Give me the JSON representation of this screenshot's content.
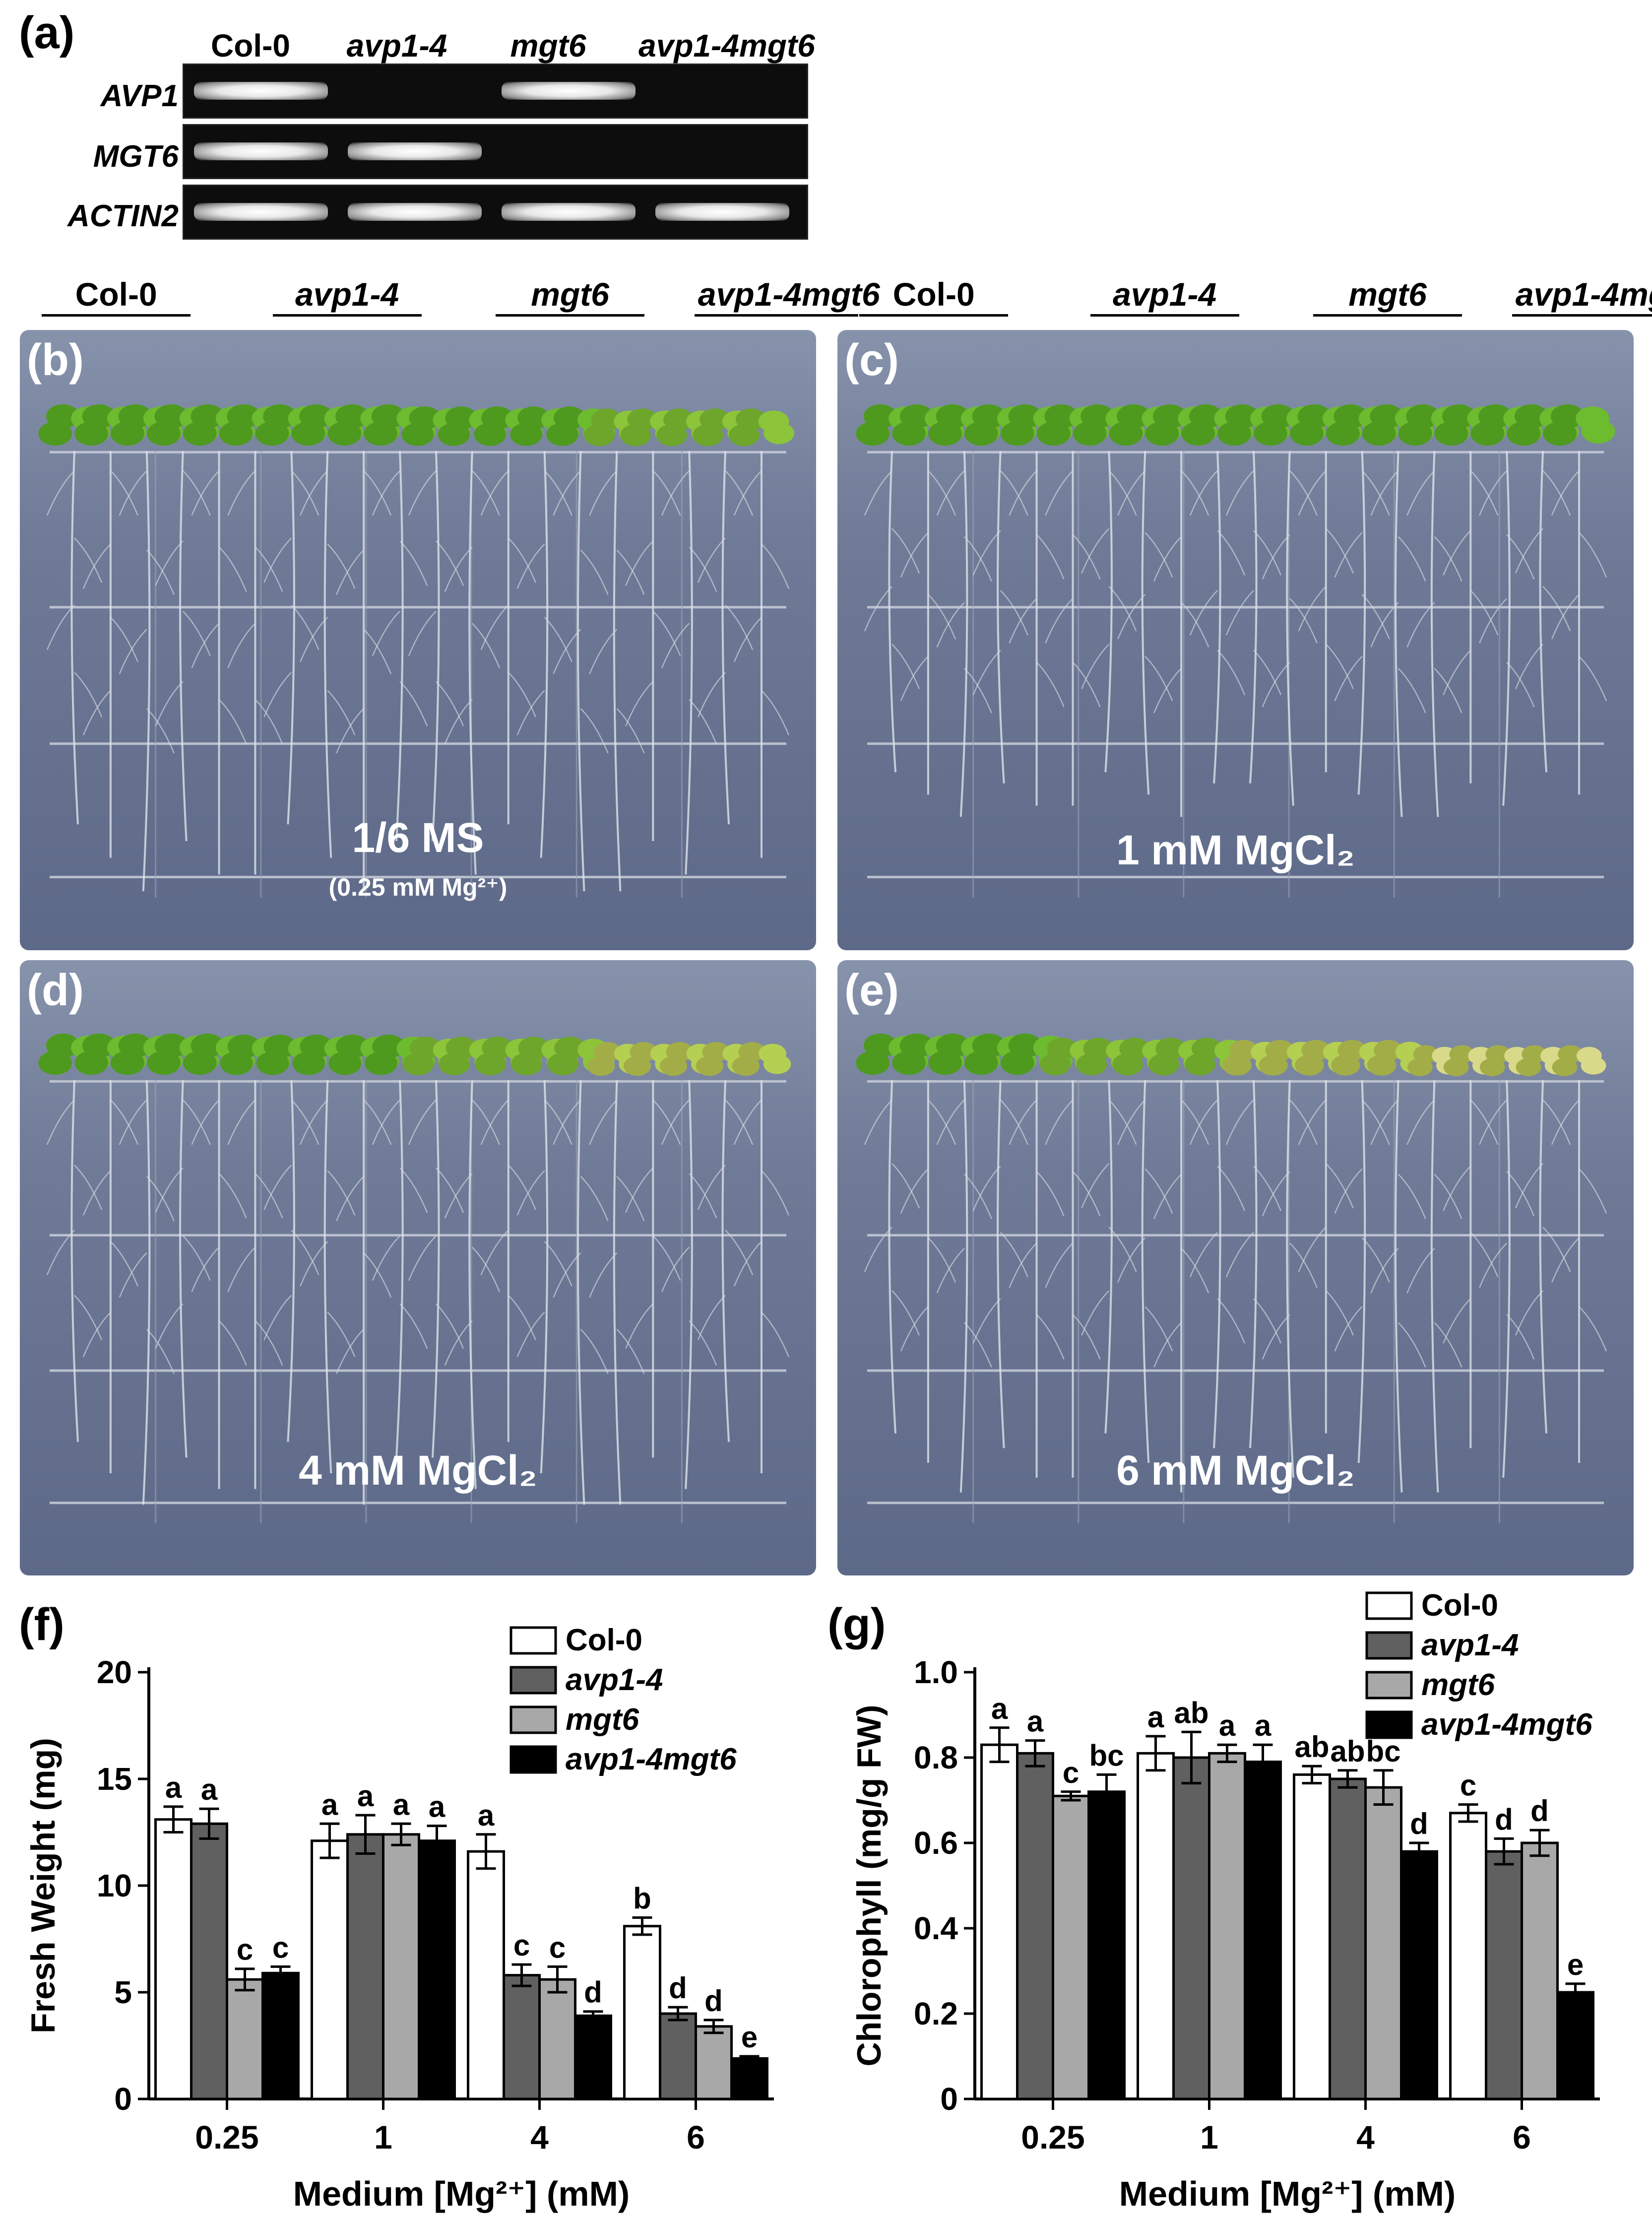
{
  "panel_labels": {
    "a": "(a)",
    "b": "(b)",
    "c": "(c)",
    "d": "(d)",
    "e": "(e)",
    "f": "(f)",
    "g": "(g)"
  },
  "gel": {
    "columns": [
      "Col-0",
      "avp1-4",
      "mgt6",
      "avp1-4mgt6"
    ],
    "rows": [
      {
        "gene": "AVP1",
        "bands": [
          true,
          false,
          true,
          false
        ]
      },
      {
        "gene": "MGT6",
        "bands": [
          true,
          true,
          false,
          false
        ]
      },
      {
        "gene": "ACTIN2",
        "bands": [
          true,
          true,
          true,
          true
        ]
      }
    ]
  },
  "photos": {
    "genotypes": [
      "Col-0",
      "avp1-4",
      "mgt6",
      "avp1-4mgt6"
    ],
    "plates": [
      {
        "letter": "(b)",
        "condition": "1/6 MS",
        "sub": "(0.25 mM Mg²⁺)"
      },
      {
        "letter": "(c)",
        "condition": "1 mM MgCl₂",
        "sub": ""
      },
      {
        "letter": "(d)",
        "condition": "4 mM MgCl₂",
        "sub": ""
      },
      {
        "letter": "(e)",
        "condition": "6 mM MgCl₂",
        "sub": ""
      }
    ]
  },
  "colors": {
    "col0": "#ffffff",
    "avp1_4": "#606060",
    "mgt6": "#a8a8a8",
    "double": "#000000"
  },
  "chart_data": [
    {
      "type": "bar",
      "panel": "(f)",
      "categories": [
        "0.25",
        "1",
        "4",
        "6"
      ],
      "xlabel": "Medium [Mg²⁺] (mM)",
      "ylabel": "Fresh Weight (mg)",
      "ylim": [
        0,
        20
      ],
      "yticks": [
        "0",
        "5",
        "10",
        "15",
        "20"
      ],
      "legend_placement": "top-right",
      "series": [
        {
          "name": "Col-0",
          "values": [
            13.1,
            12.1,
            11.6,
            8.1
          ],
          "errors": [
            0.6,
            0.8,
            0.8,
            0.4
          ],
          "letters": [
            "a",
            "a",
            "a",
            "b"
          ]
        },
        {
          "name": "avp1-4",
          "values": [
            12.9,
            12.4,
            5.8,
            4.0
          ],
          "errors": [
            0.7,
            0.9,
            0.5,
            0.3
          ],
          "letters": [
            "a",
            "a",
            "c",
            "d"
          ]
        },
        {
          "name": "mgt6",
          "values": [
            5.6,
            12.4,
            5.6,
            3.4
          ],
          "errors": [
            0.5,
            0.5,
            0.6,
            0.3
          ],
          "letters": [
            "c",
            "a",
            "c",
            "d"
          ]
        },
        {
          "name": "avp1-4mgt6",
          "values": [
            5.9,
            12.1,
            3.9,
            1.9
          ],
          "errors": [
            0.3,
            0.7,
            0.2,
            0.1
          ],
          "letters": [
            "c",
            "a",
            "d",
            "e"
          ]
        }
      ]
    },
    {
      "type": "bar",
      "panel": "(g)",
      "categories": [
        "0.25",
        "1",
        "4",
        "6"
      ],
      "xlabel": "Medium [Mg²⁺] (mM)",
      "ylabel": "Chlorophyll (mg/g FW)",
      "ylim": [
        0,
        1.0
      ],
      "yticks": [
        "0",
        "0.2",
        "0.4",
        "0.6",
        "0.8",
        "1.0"
      ],
      "legend_placement": "top-right",
      "series": [
        {
          "name": "Col-0",
          "values": [
            0.83,
            0.81,
            0.76,
            0.67
          ],
          "errors": [
            0.04,
            0.04,
            0.02,
            0.02
          ],
          "letters": [
            "a",
            "a",
            "ab",
            "c"
          ]
        },
        {
          "name": "avp1-4",
          "values": [
            0.81,
            0.8,
            0.75,
            0.58
          ],
          "errors": [
            0.03,
            0.06,
            0.02,
            0.03
          ],
          "letters": [
            "a",
            "ab",
            "ab",
            "d"
          ]
        },
        {
          "name": "mgt6",
          "values": [
            0.71,
            0.81,
            0.73,
            0.6
          ],
          "errors": [
            0.01,
            0.02,
            0.04,
            0.03
          ],
          "letters": [
            "c",
            "a",
            "bc",
            "d"
          ]
        },
        {
          "name": "avp1-4mgt6",
          "values": [
            0.72,
            0.79,
            0.58,
            0.25
          ],
          "errors": [
            0.04,
            0.04,
            0.02,
            0.02
          ],
          "letters": [
            "bc",
            "a",
            "d",
            "e"
          ]
        }
      ]
    }
  ]
}
